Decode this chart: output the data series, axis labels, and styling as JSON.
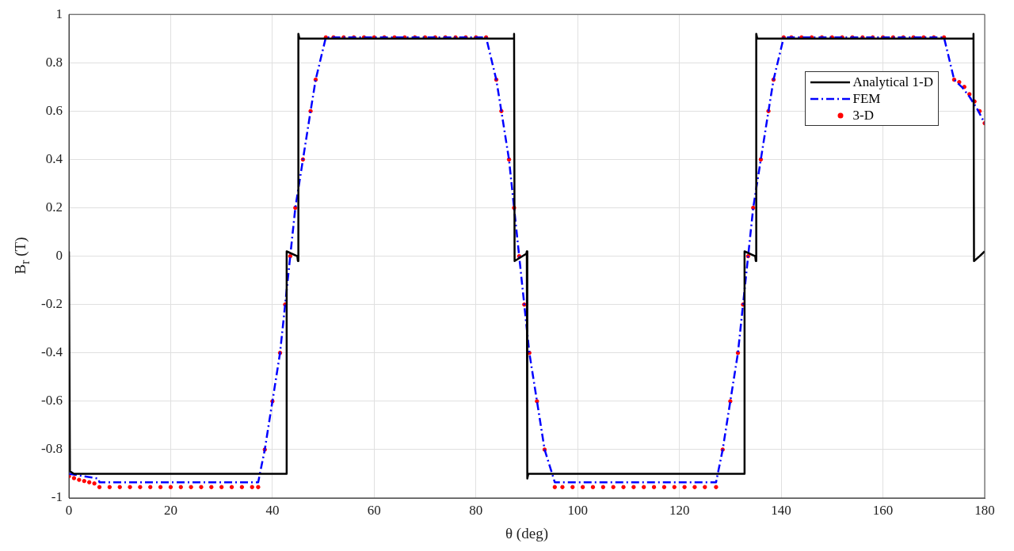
{
  "chart_data": {
    "type": "line",
    "xlabel": "θ (deg)",
    "ylabel": "B$_{r}$ (T)",
    "xlim": [
      0,
      180
    ],
    "xticks": [
      0,
      20,
      40,
      60,
      80,
      100,
      120,
      140,
      160,
      180
    ],
    "ylim": [
      -1,
      1
    ],
    "yticks": [
      -1,
      -0.8,
      -0.6,
      -0.4,
      -0.2,
      0,
      0.2,
      0.4,
      0.6,
      0.8,
      1
    ],
    "grid": true,
    "legend": "top right",
    "series": [
      {
        "name": "Analytical 1-D",
        "color": "#000000",
        "type": "line",
        "line_style": "solid",
        "marker": "none",
        "x": [
          0,
          0.2,
          1,
          42.7,
          42.8,
          44.9,
          45,
          45.1,
          45.3,
          87.4,
          87.5,
          87.6,
          89.9,
          90,
          90.1,
          90.3,
          132.7,
          132.8,
          134.9,
          135,
          135.1,
          135.3,
          177.7,
          177.8,
          177.9,
          179,
          180
        ],
        "values": [
          0.02,
          -0.89,
          -0.9,
          -0.9,
          0.02,
          0,
          -0.02,
          0.92,
          0.9,
          0.9,
          0.92,
          -0.02,
          0.01,
          0.02,
          -0.92,
          -0.9,
          -0.9,
          0.02,
          0,
          -0.02,
          0.92,
          0.9,
          0.9,
          0.92,
          -0.02,
          0,
          0.02
        ]
      },
      {
        "name": "FEM",
        "color": "#0000ff",
        "type": "line",
        "line_style": "dashed",
        "marker": "none",
        "x": [
          0,
          5.8,
          6,
          37.2,
          38.5,
          40,
          41.5,
          42.5,
          43.5,
          44.5,
          46,
          47.5,
          48.5,
          50.5,
          82,
          84,
          85,
          86.5,
          87.5,
          88.5,
          89.5,
          90.5,
          92,
          93.5,
          95.5,
          127.2,
          128.5,
          130,
          131.5,
          132.5,
          133.5,
          134.5,
          136,
          137.5,
          138.5,
          140.5,
          172,
          174,
          175.5,
          177,
          178.5,
          180
        ],
        "values": [
          -0.9,
          -0.92,
          -0.935,
          -0.935,
          -0.8,
          -0.6,
          -0.4,
          -0.2,
          0,
          0.2,
          0.4,
          0.6,
          0.73,
          0.905,
          0.905,
          0.73,
          0.6,
          0.4,
          0.2,
          0,
          -0.2,
          -0.4,
          -0.6,
          -0.8,
          -0.935,
          -0.935,
          -0.8,
          -0.6,
          -0.4,
          -0.2,
          0,
          0.2,
          0.4,
          0.6,
          0.73,
          0.905,
          0.905,
          0.73,
          0.7,
          0.66,
          0.61,
          0.55
        ]
      },
      {
        "name": "3-D",
        "color": "#ff0000",
        "type": "scatter",
        "marker": "circle",
        "x": [
          0,
          1,
          2,
          3,
          4,
          5,
          6,
          8,
          10,
          12,
          14,
          16,
          18,
          20,
          22,
          24,
          26,
          28,
          30,
          32,
          34,
          36,
          37.2,
          38.5,
          40,
          41.5,
          42.5,
          43.5,
          44.5,
          46,
          47.5,
          48.5,
          50.5,
          52,
          54,
          56,
          58,
          60,
          62,
          64,
          66,
          68,
          70,
          72,
          74,
          76,
          78,
          80,
          82,
          84,
          85,
          86.5,
          87.5,
          88.5,
          89.5,
          90.5,
          92,
          93.5,
          95.5,
          97,
          99,
          101,
          103,
          105,
          107,
          109,
          111,
          113,
          115,
          117,
          119,
          121,
          123,
          125,
          127.2,
          128.5,
          130,
          131.5,
          132.5,
          133.5,
          134.5,
          136,
          137.5,
          138.5,
          140.5,
          142,
          144,
          146,
          148,
          150,
          152,
          154,
          156,
          158,
          160,
          162,
          164,
          166,
          168,
          170,
          172,
          174,
          175,
          176,
          177,
          178,
          179,
          180
        ],
        "values": [
          -0.91,
          -0.918,
          -0.925,
          -0.93,
          -0.935,
          -0.94,
          -0.955,
          -0.955,
          -0.955,
          -0.955,
          -0.955,
          -0.955,
          -0.955,
          -0.955,
          -0.955,
          -0.955,
          -0.955,
          -0.955,
          -0.955,
          -0.955,
          -0.955,
          -0.955,
          -0.955,
          -0.8,
          -0.6,
          -0.4,
          -0.2,
          0,
          0.2,
          0.4,
          0.6,
          0.73,
          0.905,
          0.905,
          0.905,
          0.905,
          0.905,
          0.905,
          0.905,
          0.905,
          0.905,
          0.905,
          0.905,
          0.905,
          0.905,
          0.905,
          0.905,
          0.905,
          0.905,
          0.73,
          0.6,
          0.4,
          0.2,
          0,
          -0.2,
          -0.4,
          -0.6,
          -0.8,
          -0.955,
          -0.955,
          -0.955,
          -0.955,
          -0.955,
          -0.955,
          -0.955,
          -0.955,
          -0.955,
          -0.955,
          -0.955,
          -0.955,
          -0.955,
          -0.955,
          -0.955,
          -0.955,
          -0.955,
          -0.8,
          -0.6,
          -0.4,
          -0.2,
          0,
          0.2,
          0.4,
          0.6,
          0.73,
          0.905,
          0.905,
          0.905,
          0.905,
          0.905,
          0.905,
          0.905,
          0.905,
          0.905,
          0.905,
          0.905,
          0.905,
          0.905,
          0.905,
          0.905,
          0.905,
          0.905,
          0.73,
          0.72,
          0.7,
          0.67,
          0.64,
          0.6,
          0.55
        ]
      }
    ]
  }
}
